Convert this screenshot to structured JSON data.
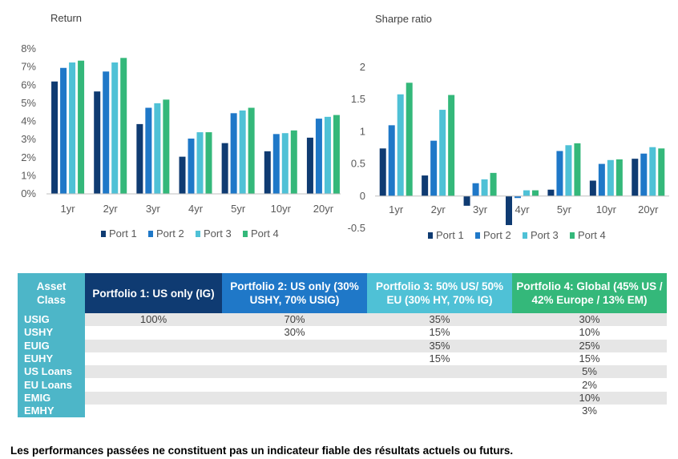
{
  "colors": {
    "port1": "#0f3b72",
    "port2": "#1f78c8",
    "port3": "#4fc1d6",
    "port4": "#34b87a",
    "header_asset": "#4db6c8",
    "header_p1": "#0f3b72",
    "header_p2": "#1f78c8",
    "header_p3": "#4fc1d6",
    "header_p4": "#34b87a"
  },
  "chart_data": [
    {
      "type": "bar",
      "title": "Return",
      "categories": [
        "1yr",
        "2yr",
        "3yr",
        "4yr",
        "5yr",
        "10yr",
        "20yr"
      ],
      "ylim": [
        0,
        8
      ],
      "yticks": [
        0,
        1,
        2,
        3,
        4,
        5,
        6,
        7,
        8
      ],
      "ytick_labels": [
        "0%",
        "1%",
        "2%",
        "3%",
        "4%",
        "5%",
        "6%",
        "7%",
        "8%"
      ],
      "series": [
        {
          "name": "Port 1",
          "values": [
            6.2,
            5.65,
            3.85,
            2.05,
            2.8,
            2.35,
            3.1
          ]
        },
        {
          "name": "Port 2",
          "values": [
            6.95,
            6.75,
            4.75,
            3.05,
            4.45,
            3.3,
            4.15
          ]
        },
        {
          "name": "Port 3",
          "values": [
            7.25,
            7.25,
            5.0,
            3.4,
            4.6,
            3.35,
            4.25
          ]
        },
        {
          "name": "Port 4",
          "values": [
            7.35,
            7.5,
            5.2,
            3.4,
            4.75,
            3.5,
            4.35
          ]
        }
      ],
      "legend": "bottom"
    },
    {
      "type": "bar",
      "title": "Sharpe ratio",
      "categories": [
        "1yr",
        "2yr",
        "3yr",
        "4yr",
        "5yr",
        "10yr",
        "20yr"
      ],
      "ylim": [
        -0.5,
        2
      ],
      "yticks": [
        -0.5,
        0,
        0.5,
        1,
        1.5,
        2
      ],
      "ytick_labels": [
        "-0.5",
        "0",
        "0.5",
        "1",
        "1.5",
        "2"
      ],
      "series": [
        {
          "name": "Port 1",
          "values": [
            0.74,
            0.32,
            -0.15,
            -0.45,
            0.1,
            0.24,
            0.58
          ]
        },
        {
          "name": "Port 2",
          "values": [
            1.1,
            0.86,
            0.2,
            -0.03,
            0.7,
            0.5,
            0.66
          ]
        },
        {
          "name": "Port 3",
          "values": [
            1.58,
            1.34,
            0.26,
            0.09,
            0.79,
            0.56,
            0.76
          ]
        },
        {
          "name": "Port 4",
          "values": [
            1.76,
            1.57,
            0.36,
            0.09,
            0.82,
            0.57,
            0.74
          ]
        }
      ],
      "legend": "bottom"
    }
  ],
  "table": {
    "headers": [
      "Asset Class",
      "Portfolio 1: US only (IG)",
      "Portfolio 2:  US only (30% USHY, 70% USIG)",
      "Portfolio 3: 50% US/ 50% EU (30% HY, 70% IG)",
      "Portfolio 4: Global  (45% US / 42% Europe / 13% EM)"
    ],
    "rows": [
      {
        "asset": "USIG",
        "p1": "100%",
        "p2": "70%",
        "p3": "35%",
        "p4": "30%"
      },
      {
        "asset": "USHY",
        "p1": "",
        "p2": "30%",
        "p3": "15%",
        "p4": "10%"
      },
      {
        "asset": "EUIG",
        "p1": "",
        "p2": "",
        "p3": "35%",
        "p4": "25%"
      },
      {
        "asset": "EUHY",
        "p1": "",
        "p2": "",
        "p3": "15%",
        "p4": "15%"
      },
      {
        "asset": "US Loans",
        "p1": "",
        "p2": "",
        "p3": "",
        "p4": "5%"
      },
      {
        "asset": "EU Loans",
        "p1": "",
        "p2": "",
        "p3": "",
        "p4": "2%"
      },
      {
        "asset": "EMIG",
        "p1": "",
        "p2": "",
        "p3": "",
        "p4": "10%"
      },
      {
        "asset": "EMHY",
        "p1": "",
        "p2": "",
        "p3": "",
        "p4": "3%"
      }
    ]
  },
  "disclaimer": "Les performances passées ne constituent pas un indicateur fiable des résultats actuels ou futurs."
}
